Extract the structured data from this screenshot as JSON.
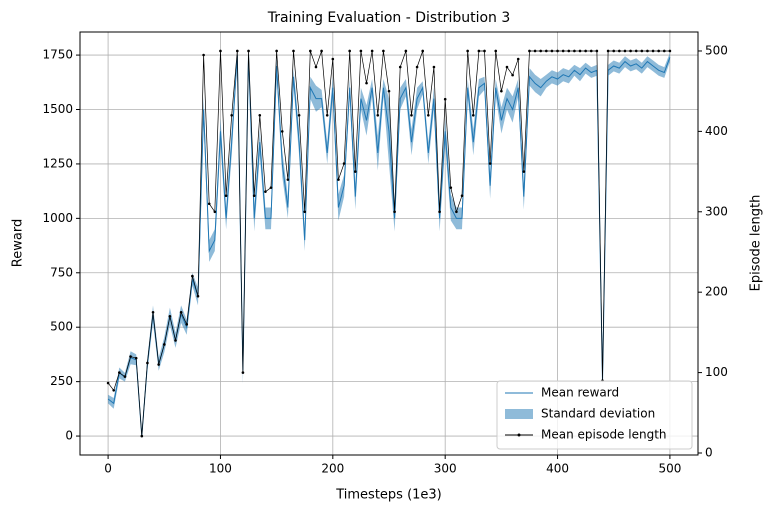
{
  "chart_data": {
    "type": "line",
    "title": "Training Evaluation - Distribution 3",
    "x_label": "Timesteps (1e3)",
    "y_label": "Reward",
    "y2_label": "Episode length",
    "xlim": [
      -25,
      525
    ],
    "xticks": [
      0,
      100,
      200,
      300,
      400,
      500
    ],
    "ylim": [
      -87,
      1856
    ],
    "yticks": [
      0,
      250,
      500,
      750,
      1000,
      1250,
      1500,
      1750
    ],
    "y2lim": [
      -2.5,
      523.6
    ],
    "y2ticks": [
      0,
      100,
      200,
      300,
      400,
      500
    ],
    "grid": true,
    "legend": "lower right",
    "x": [
      0,
      5,
      10,
      15,
      20,
      25,
      30,
      35,
      40,
      45,
      50,
      55,
      60,
      65,
      70,
      75,
      80,
      85,
      90,
      95,
      100,
      105,
      110,
      115,
      120,
      125,
      130,
      135,
      140,
      145,
      150,
      155,
      160,
      165,
      170,
      175,
      180,
      185,
      190,
      195,
      200,
      205,
      210,
      215,
      220,
      225,
      230,
      235,
      240,
      245,
      250,
      255,
      260,
      265,
      270,
      275,
      280,
      285,
      290,
      295,
      300,
      305,
      310,
      315,
      320,
      325,
      330,
      335,
      340,
      345,
      350,
      355,
      360,
      365,
      370,
      375,
      380,
      385,
      390,
      395,
      400,
      405,
      410,
      415,
      420,
      425,
      430,
      435,
      440,
      445,
      450,
      455,
      460,
      465,
      470,
      475,
      480,
      485,
      490,
      495,
      500
    ],
    "series": [
      {
        "name": "Mean reward",
        "color": "#1f77b4",
        "values": [
          170,
          150,
          290,
          270,
          360,
          350,
          0,
          330,
          560,
          330,
          420,
          550,
          440,
          560,
          500,
          720,
          640,
          1500,
          850,
          900,
          1400,
          1000,
          1350,
          1750,
          300,
          1750,
          1000,
          1350,
          1000,
          1000,
          1700,
          1250,
          1050,
          1650,
          1350,
          900,
          1600,
          1550,
          1550,
          1300,
          1600,
          1050,
          1150,
          1600,
          1100,
          1550,
          1450,
          1600,
          1300,
          1600,
          1400,
          1000,
          1550,
          1600,
          1350,
          1550,
          1600,
          1300,
          1550,
          1000,
          1400,
          1050,
          1000,
          1000,
          1600,
          1350,
          1600,
          1620,
          1150,
          1600,
          1450,
          1550,
          1500,
          1600,
          1100,
          1650,
          1620,
          1600,
          1630,
          1650,
          1640,
          1660,
          1650,
          1680,
          1660,
          1690,
          1670,
          1680,
          250,
          1680,
          1700,
          1690,
          1720,
          1700,
          1710,
          1690,
          1720,
          1700,
          1680,
          1670,
          1740
        ]
      },
      {
        "name": "Standard deviation",
        "type": "band",
        "color": "#1f77b4",
        "values": [
          20,
          25,
          25,
          20,
          30,
          25,
          10,
          30,
          40,
          30,
          35,
          40,
          35,
          40,
          35,
          30,
          40,
          60,
          50,
          50,
          60,
          50,
          60,
          20,
          60,
          20,
          60,
          60,
          50,
          50,
          40,
          60,
          50,
          40,
          60,
          50,
          50,
          60,
          40,
          50,
          50,
          60,
          50,
          40,
          60,
          50,
          70,
          40,
          80,
          40,
          150,
          60,
          50,
          40,
          60,
          50,
          30,
          50,
          50,
          60,
          60,
          60,
          50,
          50,
          40,
          60,
          40,
          30,
          60,
          40,
          60,
          50,
          60,
          40,
          60,
          40,
          40,
          40,
          30,
          30,
          30,
          30,
          30,
          25,
          30,
          25,
          25,
          25,
          20,
          25,
          25,
          25,
          25,
          25,
          25,
          25,
          25,
          25,
          25,
          25,
          20
        ]
      },
      {
        "name": "Mean episode length",
        "color": "#000000",
        "axis": "y2",
        "values": [
          87,
          78,
          100,
          95,
          120,
          118,
          21,
          112,
          175,
          110,
          135,
          170,
          140,
          175,
          160,
          220,
          195,
          495,
          310,
          300,
          500,
          320,
          420,
          500,
          100,
          500,
          320,
          420,
          325,
          330,
          500,
          400,
          340,
          500,
          420,
          300,
          500,
          480,
          500,
          420,
          490,
          340,
          360,
          500,
          350,
          500,
          460,
          500,
          420,
          500,
          450,
          300,
          480,
          500,
          420,
          480,
          500,
          420,
          480,
          300,
          440,
          330,
          300,
          320,
          500,
          420,
          500,
          500,
          360,
          500,
          450,
          480,
          470,
          490,
          350,
          500,
          500,
          500,
          500,
          500,
          500,
          500,
          500,
          500,
          500,
          500,
          500,
          500,
          90,
          500,
          500,
          500,
          500,
          500,
          500,
          500,
          500,
          500,
          500,
          500,
          500
        ]
      }
    ]
  }
}
